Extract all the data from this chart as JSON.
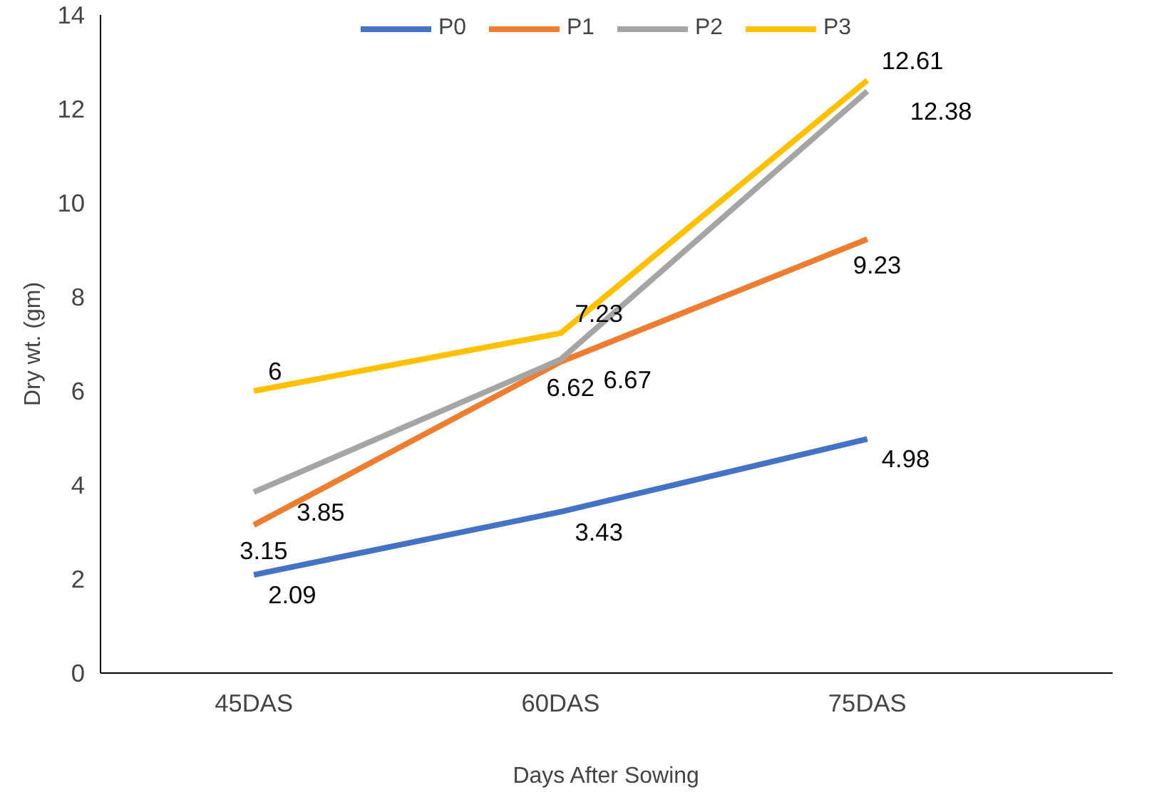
{
  "chart_data": {
    "type": "line",
    "xlabel": "Days After Sowing",
    "ylabel": "Dry wt. (gm)",
    "categories": [
      "45DAS",
      "60DAS",
      "75DAS"
    ],
    "series": [
      {
        "name": "P0",
        "color": "#4472c4",
        "values": [
          2.09,
          3.43,
          4.98
        ]
      },
      {
        "name": "P1",
        "color": "#ed7d31",
        "values": [
          3.15,
          6.62,
          9.23
        ]
      },
      {
        "name": "P2",
        "color": "#a5a5a5",
        "values": [
          3.85,
          6.67,
          12.38
        ]
      },
      {
        "name": "P3",
        "color": "#ffc000",
        "values": [
          6,
          7.23,
          12.61
        ]
      }
    ],
    "ylim": [
      0,
      14
    ],
    "yticks": [
      0,
      2,
      4,
      6,
      8,
      10,
      12,
      14
    ],
    "grid": false,
    "legend": "top",
    "data_labels": true,
    "marker": "none",
    "line_style": "solid"
  }
}
